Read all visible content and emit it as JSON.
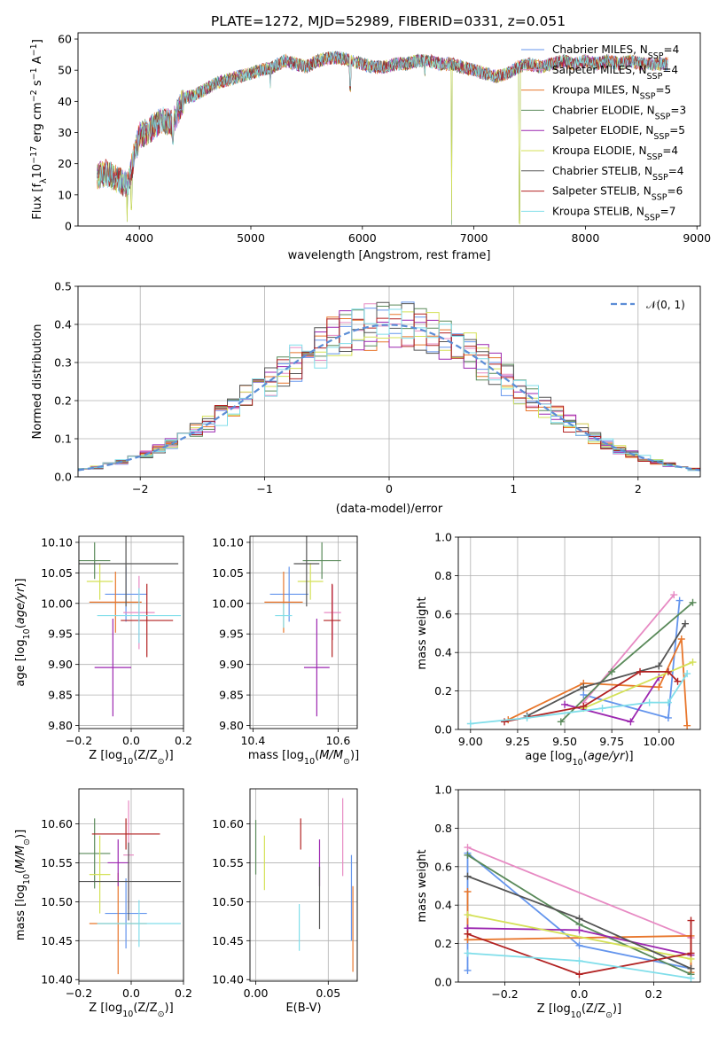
{
  "chart_data": [
    {
      "id": "spectrum",
      "type": "line",
      "title": "PLATE=1272, MJD=52989, FIBERID=0331, z=0.051",
      "xlabel": "wavelength [Angstrom, rest frame]",
      "ylabel": "Flux [f$_\\lambda$10$^{-17}$ erg cm$^{-2}$ s$^{-1}$ A$^{-1}$]",
      "ylabel_parts": {
        "a": "Flux [f",
        "b": "λ",
        "c": "10",
        "d": "−17",
        "e": " erg cm",
        "f": "−2",
        "g": " s",
        "h": "−1",
        "i": " A",
        "j": "−1",
        "k": "]"
      },
      "xlim": [
        3450,
        9030
      ],
      "ylim": [
        0,
        62
      ],
      "xticks": [
        4000,
        5000,
        6000,
        7000,
        8000,
        9000
      ],
      "yticks": [
        0,
        10,
        20,
        30,
        40,
        50,
        60
      ],
      "legend_position": "right",
      "continuum": {
        "x": [
          3620,
          3700,
          3800,
          3900,
          3950,
          4000,
          4100,
          4200,
          4300,
          4400,
          4500,
          4600,
          4700,
          4800,
          4900,
          5000,
          5100,
          5200,
          5300,
          5400,
          5500,
          5600,
          5700,
          5800,
          5900,
          6000,
          6100,
          6200,
          6300,
          6400,
          6500,
          6600,
          6700,
          6800,
          6900,
          7000,
          7100,
          7200,
          7300,
          7400,
          7500,
          7600,
          7700,
          7800,
          7900,
          8000,
          8100,
          8200,
          8300,
          8400,
          8500,
          8600,
          8700
        ],
        "y": [
          16,
          17,
          15,
          13,
          22,
          29,
          31,
          34,
          33,
          41,
          42,
          44,
          46,
          47,
          48,
          49,
          50,
          51,
          53,
          52,
          51,
          53,
          54,
          54,
          53,
          52,
          51,
          51,
          52,
          52,
          53,
          53,
          52,
          52,
          51,
          50,
          49,
          48,
          49,
          51,
          52,
          51,
          52,
          53,
          52,
          53,
          52,
          53,
          52,
          53,
          52,
          52,
          52
        ]
      },
      "dips": [
        [
          3890,
          0
        ],
        [
          3930,
          4
        ],
        [
          4300,
          26
        ],
        [
          5175,
          44
        ],
        [
          5890,
          43
        ],
        [
          6560,
          48
        ],
        [
          6800,
          0
        ],
        [
          7410,
          0
        ]
      ],
      "series": [
        {
          "name_main": "Chabrier MILES, N",
          "name_sub": "SSP",
          "name_val": "=4",
          "color": "#6495ed"
        },
        {
          "name_main": "Salpeter MILES, N",
          "name_sub": "SSP",
          "name_val": "=4",
          "color": "#e78ac3"
        },
        {
          "name_main": "Kroupa MILES, N",
          "name_sub": "SSP",
          "name_val": "=5",
          "color": "#e8762b"
        },
        {
          "name_main": "Chabrier ELODIE, N",
          "name_sub": "SSP",
          "name_val": "=3",
          "color": "#5a8a5a"
        },
        {
          "name_main": "Salpeter ELODIE, N",
          "name_sub": "SSP",
          "name_val": "=5",
          "color": "#9c27b0"
        },
        {
          "name_main": "Kroupa ELODIE, N",
          "name_sub": "SSP",
          "name_val": "=4",
          "color": "#d4e157"
        },
        {
          "name_main": "Chabrier STELIB, N",
          "name_sub": "SSP",
          "name_val": "=4",
          "color": "#555555"
        },
        {
          "name_main": "Salpeter STELIB, N",
          "name_sub": "SSP",
          "name_val": "=6",
          "color": "#b22222"
        },
        {
          "name_main": "Kroupa STELIB, N",
          "name_sub": "SSP",
          "name_val": "=7",
          "color": "#80deea"
        }
      ]
    },
    {
      "id": "residuals",
      "type": "histogram",
      "xlabel": "(data-model)/error",
      "ylabel": "Normed distribution",
      "xlim": [
        -2.5,
        2.5
      ],
      "ylim": [
        0,
        0.5
      ],
      "xticks": [
        -2,
        -1,
        0,
        1,
        2
      ],
      "xticklabels": [
        "−2",
        "−1",
        "0",
        "1",
        "2"
      ],
      "yticks": [
        0.0,
        0.1,
        0.2,
        0.3,
        0.4,
        0.5
      ],
      "yticklabels": [
        "0.0",
        "0.1",
        "0.2",
        "0.3",
        "0.4",
        "0.5"
      ],
      "grid": true,
      "bin_width": 0.1,
      "gaussian": {
        "label": "$\\mathcal{N}(0,1)$",
        "label_text": "𝒩(0, 1)",
        "color": "#5b8dd6",
        "mu": 0,
        "sigma": 1
      },
      "legend_position": "top-right"
    },
    {
      "id": "age-vs-Z",
      "type": "errorbar",
      "xlabel": "Z [log$_{10}$(Z/Z$_\\odot$)]",
      "ylabel": "age  [log$_{10}$($age/yr$)]",
      "xlim": [
        -0.2,
        0.2
      ],
      "ylim": [
        9.795,
        10.11
      ],
      "xticks": [
        -0.2,
        0.0,
        0.2
      ],
      "xticklabels": [
        "−0.2",
        "0.0",
        "0.2"
      ],
      "yticks": [
        9.8,
        9.85,
        9.9,
        9.95,
        10.0,
        10.05,
        10.1
      ],
      "yticklabels": [
        "9.80",
        "9.85",
        "9.90",
        "9.95",
        "10.00",
        "10.05",
        "10.10"
      ],
      "points": [
        {
          "x": -0.02,
          "xerr": 0.08,
          "y": 10.015,
          "yerr": 0.045
        },
        {
          "x": 0.03,
          "xerr": 0.06,
          "y": 9.985,
          "yerr": 0.06
        },
        {
          "x": -0.06,
          "xerr": 0.1,
          "y": 10.002,
          "yerr": 0.05
        },
        {
          "x": -0.14,
          "xerr": 0.06,
          "y": 10.07,
          "yerr": 0.03
        },
        {
          "x": -0.07,
          "xerr": 0.07,
          "y": 9.895,
          "yerr": 0.08
        },
        {
          "x": -0.12,
          "xerr": 0.05,
          "y": 10.036,
          "yerr": 0.03
        },
        {
          "x": -0.02,
          "xerr": 0.2,
          "y": 10.065,
          "yerr": 0.07
        },
        {
          "x": 0.06,
          "xerr": 0.1,
          "y": 9.972,
          "yerr": 0.06
        },
        {
          "x": 0.03,
          "xerr": 0.16,
          "y": 9.98,
          "yerr": 0.045
        }
      ]
    },
    {
      "id": "age-vs-mass",
      "type": "errorbar",
      "xlabel": "mass [log$_{10}$($M/M_\\odot$)]",
      "ylabel": "",
      "xlim": [
        10.393,
        10.645
      ],
      "ylim": [
        9.795,
        10.11
      ],
      "xticks": [
        10.4,
        10.6
      ],
      "xticklabels": [
        "10.4",
        "10.6"
      ],
      "yticks": [
        9.8,
        9.85,
        9.9,
        9.95,
        10.0,
        10.05,
        10.1
      ],
      "yticklabels": [
        "9.80",
        "9.85",
        "9.90",
        "9.95",
        "10.00",
        "10.05",
        "10.10"
      ],
      "points": [
        {
          "x": 10.485,
          "xerr": 0.045,
          "y": 10.015,
          "yerr": 0.045
        },
        {
          "x": 10.587,
          "xerr": 0.02,
          "y": 9.985,
          "yerr": 0.045
        },
        {
          "x": 10.472,
          "xerr": 0.045,
          "y": 10.002,
          "yerr": 0.05
        },
        {
          "x": 10.562,
          "xerr": 0.045,
          "y": 10.07,
          "yerr": 0.03
        },
        {
          "x": 10.55,
          "xerr": 0.03,
          "y": 9.895,
          "yerr": 0.08
        },
        {
          "x": 10.535,
          "xerr": 0.03,
          "y": 10.036,
          "yerr": 0.03
        },
        {
          "x": 10.526,
          "xerr": 0.03,
          "y": 10.065,
          "yerr": 0.07
        },
        {
          "x": 10.586,
          "xerr": 0.02,
          "y": 9.972,
          "yerr": 0.06
        },
        {
          "x": 10.472,
          "xerr": 0.02,
          "y": 9.98,
          "yerr": 0.02
        }
      ]
    },
    {
      "id": "mass-weight-vs-age",
      "type": "line",
      "xlabel": "age  [log$_{10}$($age/yr$)]",
      "ylabel": "mass weight",
      "xlim": [
        8.935,
        10.22
      ],
      "ylim": [
        0,
        1
      ],
      "xticks": [
        9.0,
        9.25,
        9.5,
        9.75,
        10.0
      ],
      "xticklabels": [
        "9.00",
        "9.25",
        "9.50",
        "9.75",
        "10.00"
      ],
      "yticks": [
        0,
        0.2,
        0.4,
        0.6,
        0.8,
        1.0
      ],
      "yticklabels": [
        "0.0",
        "0.2",
        "0.4",
        "0.6",
        "0.8",
        "1.0"
      ],
      "grid": true,
      "series": [
        {
          "x": [
            9.6,
            10.05,
            10.11
          ],
          "y": [
            0.18,
            0.06,
            0.67
          ]
        },
        {
          "x": [
            9.6,
            10.08
          ],
          "y": [
            0.14,
            0.7
          ]
        },
        {
          "x": [
            9.2,
            9.6,
            10.0,
            10.12,
            10.15
          ],
          "y": [
            0.05,
            0.24,
            0.22,
            0.47,
            0.02
          ]
        },
        {
          "x": [
            9.48,
            9.75,
            10.18
          ],
          "y": [
            0.04,
            0.3,
            0.66
          ]
        },
        {
          "x": [
            9.5,
            9.85,
            10.0
          ],
          "y": [
            0.13,
            0.04,
            0.27
          ]
        },
        {
          "x": [
            9.6,
            10.18
          ],
          "y": [
            0.11,
            0.35
          ]
        },
        {
          "x": [
            9.3,
            9.6,
            10.0,
            10.14
          ],
          "y": [
            0.07,
            0.22,
            0.33,
            0.55
          ]
        },
        {
          "x": [
            9.18,
            9.6,
            9.9,
            10.05,
            10.1
          ],
          "y": [
            0.04,
            0.12,
            0.3,
            0.3,
            0.25
          ]
        },
        {
          "x": [
            9.0,
            9.3,
            9.7,
            9.95,
            10.05,
            10.15
          ],
          "y": [
            0.03,
            0.06,
            0.11,
            0.14,
            0.14,
            0.29
          ]
        }
      ]
    },
    {
      "id": "mass-vs-Z",
      "type": "errorbar",
      "xlabel": "Z [log$_{10}$(Z/Z$_\\odot$)]",
      "ylabel": "mass [log$_{10}$($M/M_\\odot$)]",
      "xlim": [
        -0.2,
        0.2
      ],
      "ylim": [
        10.398,
        10.645
      ],
      "xticks": [
        -0.2,
        0.0,
        0.2
      ],
      "xticklabels": [
        "−0.2",
        "0.0",
        "0.2"
      ],
      "yticks": [
        10.4,
        10.45,
        10.5,
        10.55,
        10.6
      ],
      "yticklabels": [
        "10.40",
        "10.45",
        "10.50",
        "10.55",
        "10.60"
      ],
      "points": [
        {
          "x": -0.02,
          "xerr": 0.08,
          "y": 10.485,
          "yerr": 0.045
        },
        {
          "x": -0.01,
          "xerr": 0.02,
          "y": 10.56,
          "yerr": 0.07
        },
        {
          "x": -0.05,
          "xerr": 0.11,
          "y": 10.472,
          "yerr": 0.065
        },
        {
          "x": -0.14,
          "xerr": 0.06,
          "y": 10.562,
          "yerr": 0.045
        },
        {
          "x": -0.05,
          "xerr": 0.04,
          "y": 10.55,
          "yerr": 0.03
        },
        {
          "x": -0.12,
          "xerr": 0.04,
          "y": 10.535,
          "yerr": 0.05
        },
        {
          "x": -0.01,
          "xerr": 0.2,
          "y": 10.526,
          "yerr": 0.05
        },
        {
          "x": -0.02,
          "xerr": 0.13,
          "y": 10.587,
          "yerr": 0.02
        },
        {
          "x": 0.03,
          "xerr": 0.16,
          "y": 10.472,
          "yerr": 0.03
        }
      ]
    },
    {
      "id": "mass-vs-ebv",
      "type": "errorbar",
      "xlabel": "E(B-V)",
      "ylabel": "",
      "xlim": [
        -0.004,
        0.07
      ],
      "ylim": [
        10.398,
        10.645
      ],
      "xticks": [
        0.0,
        0.05
      ],
      "xticklabels": [
        "0.00",
        "0.05"
      ],
      "yticks": [
        10.4,
        10.45,
        10.5,
        10.55,
        10.6
      ],
      "yticklabels": [
        "10.40",
        "10.45",
        "10.50",
        "10.55",
        "10.60"
      ],
      "points": [
        {
          "x": 0.066,
          "xerr": 0,
          "y": 10.505,
          "yerr": 0.055
        },
        {
          "x": 0.06,
          "xerr": 0,
          "y": 10.583,
          "yerr": 0.05
        },
        {
          "x": 0.067,
          "xerr": 0,
          "y": 10.465,
          "yerr": 0.055
        },
        {
          "x": 0.0,
          "xerr": 0,
          "y": 10.57,
          "yerr": 0.035
        },
        {
          "x": 0.044,
          "xerr": 0,
          "y": 10.55,
          "yerr": 0.03
        },
        {
          "x": 0.006,
          "xerr": 0,
          "y": 10.55,
          "yerr": 0.035
        },
        {
          "x": 0.044,
          "xerr": 0,
          "y": 10.505,
          "yerr": 0.04
        },
        {
          "x": 0.031,
          "xerr": 0,
          "y": 10.587,
          "yerr": 0.02
        },
        {
          "x": 0.03,
          "xerr": 0,
          "y": 10.467,
          "yerr": 0.03
        }
      ]
    },
    {
      "id": "mass-weight-vs-Z",
      "type": "line",
      "xlabel": "Z [log$_{10}$(Z/Z$_\\odot$)]",
      "ylabel": "mass weight",
      "xlim": [
        -0.325,
        0.325
      ],
      "ylim": [
        0,
        1
      ],
      "xticks": [
        -0.2,
        0.0,
        0.2
      ],
      "xticklabels": [
        "−0.2",
        "0.0",
        "0.2"
      ],
      "yticks": [
        0,
        0.2,
        0.4,
        0.6,
        0.8,
        1.0
      ],
      "yticklabels": [
        "0.0",
        "0.2",
        "0.4",
        "0.6",
        "0.8",
        "1.0"
      ],
      "grid": true,
      "series": [
        {
          "x": [
            -0.3,
            -0.3,
            0.0,
            0.3
          ],
          "y": [
            0.06,
            0.67,
            0.19,
            0.07
          ]
        },
        {
          "x": [
            -0.3,
            0.3
          ],
          "y": [
            0.7,
            0.23
          ]
        },
        {
          "x": [
            -0.3,
            -0.3,
            0.3,
            0.3
          ],
          "y": [
            0.47,
            0.22,
            0.24,
            0.05
          ]
        },
        {
          "x": [
            -0.3,
            0.0,
            0.3
          ],
          "y": [
            0.66,
            0.3,
            0.04
          ]
        },
        {
          "x": [
            -0.3,
            0.0,
            0.3
          ],
          "y": [
            0.28,
            0.27,
            0.14
          ]
        },
        {
          "x": [
            -0.3,
            0.3
          ],
          "y": [
            0.35,
            0.12
          ]
        },
        {
          "x": [
            -0.3,
            0.0,
            0.3
          ],
          "y": [
            0.55,
            0.33,
            0.07
          ]
        },
        {
          "x": [
            -0.3,
            0.0,
            0.3,
            0.3
          ],
          "y": [
            0.25,
            0.04,
            0.15,
            0.32
          ]
        },
        {
          "x": [
            -0.3,
            0.0,
            0.3
          ],
          "y": [
            0.15,
            0.11,
            0.02
          ]
        }
      ]
    }
  ]
}
